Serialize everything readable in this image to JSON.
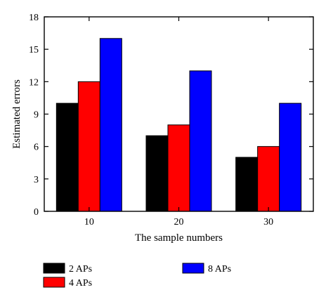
{
  "chart_data": {
    "type": "bar",
    "title": "",
    "xlabel": "The sample numbers",
    "ylabel": "Estimated errors",
    "categories": [
      "10",
      "20",
      "30"
    ],
    "ylim": [
      0,
      18
    ],
    "yticks": [
      "0",
      "3",
      "6",
      "9",
      "12",
      "15",
      "18"
    ],
    "grid": false,
    "legend_position": "bottom",
    "series": [
      {
        "name": "2 APs",
        "color": "#000000",
        "values": [
          10,
          7,
          5
        ]
      },
      {
        "name": "4 APs",
        "color": "#ff0000",
        "values": [
          12,
          8,
          6
        ]
      },
      {
        "name": "8 APs",
        "color": "#0000ff",
        "values": [
          16,
          13,
          10
        ]
      }
    ]
  }
}
